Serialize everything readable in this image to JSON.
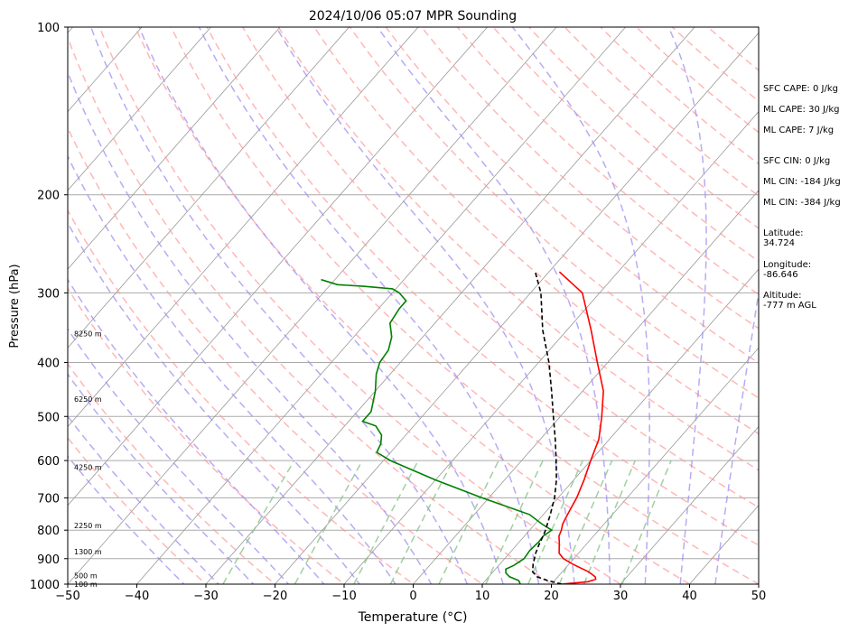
{
  "chart_data": {
    "type": "line",
    "title": "2024/10/06 05:07 MPR Sounding",
    "xlabel": "Temperature (°C)",
    "ylabel": "Pressure (hPa)",
    "xlim": [
      -50,
      50
    ],
    "ylim": [
      1000,
      100
    ],
    "y_scale": "log",
    "x_ticks": [
      -50,
      -40,
      -30,
      -20,
      -10,
      0,
      10,
      20,
      30,
      40,
      50
    ],
    "y_ticks": [
      100,
      200,
      300,
      400,
      500,
      600,
      700,
      800,
      900,
      1000
    ],
    "grid": true,
    "series": [
      {
        "color": "#ff0000",
        "points": [
          [
            1000,
            21.5
          ],
          [
            997,
            22.5
          ],
          [
            990,
            25
          ],
          [
            980,
            25.8
          ],
          [
            970,
            25.4
          ],
          [
            950,
            23.8
          ],
          [
            920,
            20.5
          ],
          [
            900,
            18.5
          ],
          [
            880,
            17.2
          ],
          [
            860,
            16.5
          ],
          [
            840,
            15.8
          ],
          [
            820,
            15.0
          ],
          [
            800,
            14.6
          ],
          [
            780,
            14.0
          ],
          [
            750,
            13.5
          ],
          [
            700,
            12.7
          ],
          [
            650,
            11.5
          ],
          [
            600,
            10.0
          ],
          [
            550,
            8.5
          ],
          [
            500,
            6.0
          ],
          [
            450,
            3.0
          ],
          [
            400,
            -1.5
          ],
          [
            350,
            -6.5
          ],
          [
            300,
            -12.5
          ],
          [
            275,
            -18.5
          ]
        ]
      },
      {
        "color": "#008000",
        "points": [
          [
            1000,
            15.5
          ],
          [
            985,
            14.8
          ],
          [
            970,
            13.0
          ],
          [
            955,
            12.0
          ],
          [
            940,
            11.5
          ],
          [
            925,
            12.2
          ],
          [
            900,
            12.8
          ],
          [
            870,
            12.6
          ],
          [
            840,
            12.8
          ],
          [
            820,
            12.7
          ],
          [
            800,
            13.2
          ],
          [
            780,
            11.0
          ],
          [
            750,
            8.0
          ],
          [
            700,
            -1.0
          ],
          [
            650,
            -10.0
          ],
          [
            600,
            -19.0
          ],
          [
            580,
            -22.0
          ],
          [
            560,
            -22.5
          ],
          [
            540,
            -23.5
          ],
          [
            520,
            -25.5
          ],
          [
            510,
            -28.0
          ],
          [
            490,
            -28.0
          ],
          [
            450,
            -30.0
          ],
          [
            420,
            -32.0
          ],
          [
            400,
            -33.0
          ],
          [
            380,
            -33.3
          ],
          [
            360,
            -34.5
          ],
          [
            340,
            -36.5
          ],
          [
            320,
            -37.0
          ],
          [
            310,
            -37.0
          ],
          [
            300,
            -39.0
          ],
          [
            295,
            -40.5
          ],
          [
            292,
            -45.0
          ],
          [
            290,
            -49.0
          ],
          [
            284,
            -52.0
          ]
        ]
      },
      {
        "color": "#000000",
        "style": "dashed",
        "points": [
          [
            1000,
            21.5
          ],
          [
            985,
            19.0
          ],
          [
            970,
            17.0
          ],
          [
            950,
            15.7
          ],
          [
            920,
            14.8
          ],
          [
            900,
            14.3
          ],
          [
            880,
            13.8
          ],
          [
            850,
            13.2
          ],
          [
            820,
            12.7
          ],
          [
            800,
            12.3
          ],
          [
            750,
            11.0
          ],
          [
            700,
            9.5
          ],
          [
            650,
            7.5
          ],
          [
            600,
            5.0
          ],
          [
            550,
            2.2
          ],
          [
            500,
            -1.0
          ],
          [
            450,
            -4.5
          ],
          [
            400,
            -8.5
          ],
          [
            350,
            -13.5
          ],
          [
            300,
            -18.5
          ],
          [
            275,
            -22.0
          ]
        ]
      }
    ],
    "height_labels": [
      {
        "p": 1000,
        "label": "100 m"
      },
      {
        "p": 965,
        "label": "500 m"
      },
      {
        "p": 875,
        "label": "1300 m"
      },
      {
        "p": 785,
        "label": "2250 m"
      },
      {
        "p": 617,
        "label": "4250 m"
      },
      {
        "p": 465,
        "label": "6250 m"
      },
      {
        "p": 355,
        "label": "8250 m"
      }
    ]
  },
  "info": {
    "sfc_cape": "SFC CAPE: 0 J/kg",
    "ml_cape_1": "ML CAPE: 30 J/kg",
    "ml_cape_2": "ML CAPE: 7 J/kg",
    "sfc_cin": "SFC CIN: 0 J/kg",
    "ml_cin_1": "ML CIN: -184 J/kg",
    "ml_cin_2": "ML CIN: -384 J/kg",
    "latitude": "Latitude:\n34.724",
    "longitude": "Longitude:\n-86.646",
    "altitude": "Altitude:\n-777 m AGL"
  },
  "colors": {
    "dry_adiabat": "#ff9999",
    "moist_adiabat": "#9f8ff0",
    "mixing_ratio": "#88c488",
    "isotherm": "#999999",
    "isobar": "#aaaaaa"
  }
}
